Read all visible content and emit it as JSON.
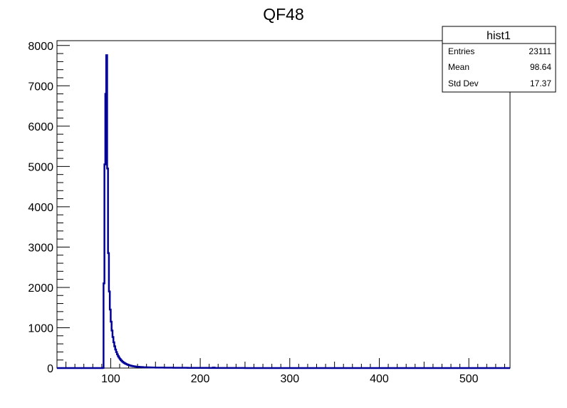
{
  "chart_data": {
    "type": "histogram",
    "title": "QF48",
    "xlabel": "",
    "ylabel": "",
    "xlim": [
      40,
      546
    ],
    "ylim": [
      0,
      8120
    ],
    "x_ticks": [
      100,
      200,
      300,
      400,
      500
    ],
    "y_ticks": [
      0,
      1000,
      2000,
      3000,
      4000,
      5000,
      6000,
      7000,
      8000
    ],
    "x_tick_labels": [
      "100",
      "200",
      "300",
      "400",
      "500"
    ],
    "y_tick_labels": [
      "0",
      "1000",
      "2000",
      "3000",
      "4000",
      "5000",
      "6000",
      "7000",
      "8000"
    ],
    "bin_width": 1,
    "series": [
      {
        "color": "#000099",
        "bins": [
          [
            90,
            0
          ],
          [
            91,
            5
          ],
          [
            92,
            2100
          ],
          [
            93,
            5050
          ],
          [
            94,
            6800
          ],
          [
            95,
            7760
          ],
          [
            96,
            4950
          ],
          [
            97,
            2850
          ],
          [
            98,
            1900
          ],
          [
            99,
            1450
          ],
          [
            100,
            1150
          ],
          [
            101,
            930
          ],
          [
            102,
            770
          ],
          [
            103,
            640
          ],
          [
            104,
            540
          ],
          [
            105,
            460
          ],
          [
            106,
            395
          ],
          [
            107,
            340
          ],
          [
            108,
            295
          ],
          [
            109,
            258
          ],
          [
            110,
            225
          ],
          [
            111,
            198
          ],
          [
            112,
            175
          ],
          [
            113,
            155
          ],
          [
            114,
            138
          ],
          [
            115,
            123
          ],
          [
            116,
            110
          ],
          [
            117,
            99
          ],
          [
            118,
            89
          ],
          [
            119,
            80
          ],
          [
            120,
            72
          ],
          [
            121,
            65
          ],
          [
            122,
            59
          ],
          [
            123,
            54
          ],
          [
            124,
            49
          ],
          [
            125,
            45
          ],
          [
            126,
            41
          ],
          [
            127,
            38
          ],
          [
            128,
            35
          ],
          [
            129,
            32
          ],
          [
            130,
            30
          ],
          [
            132,
            27
          ],
          [
            134,
            24
          ],
          [
            136,
            21
          ],
          [
            138,
            19
          ],
          [
            140,
            17
          ],
          [
            143,
            15
          ],
          [
            146,
            13
          ],
          [
            150,
            12
          ],
          [
            155,
            10
          ],
          [
            160,
            9
          ],
          [
            165,
            8
          ],
          [
            170,
            7
          ],
          [
            178,
            6
          ],
          [
            186,
            5
          ],
          [
            196,
            4
          ],
          [
            210,
            3
          ],
          [
            214,
            12
          ],
          [
            216,
            3
          ],
          [
            230,
            2
          ],
          [
            250,
            1
          ],
          [
            300,
            0
          ]
        ]
      }
    ],
    "grid": false,
    "stats_box": {
      "name": "hist1",
      "rows": [
        {
          "label": "Entries",
          "value": "23111"
        },
        {
          "label": "Mean",
          "value": "98.64"
        },
        {
          "label": "Std Dev",
          "value": "17.37"
        }
      ]
    }
  }
}
